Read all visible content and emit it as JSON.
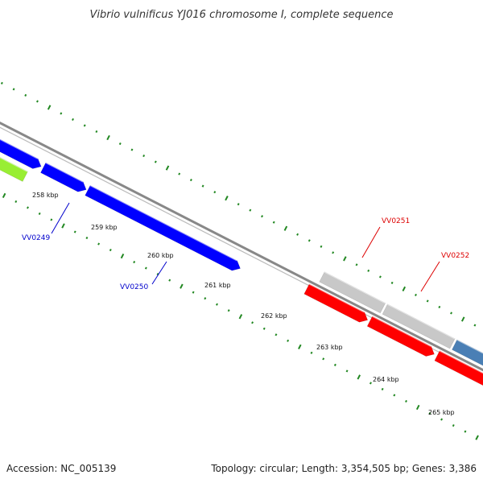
{
  "title": "Vibrio vulnificus YJ016 chromosome I, complete sequence",
  "footer": {
    "accession": "Accession: NC_005139",
    "summary": "Topology: circular; Length: 3,354,505 bp; Genes: 3,386"
  },
  "scale_labels": [
    "258 kbp",
    "259 kbp",
    "260 kbp",
    "261 kbp",
    "262 kbp",
    "263 kbp",
    "264 kbp",
    "265 kbp"
  ],
  "genes": [
    {
      "id": "lime-gene",
      "strand": "reverse",
      "color": "#99ee33",
      "label": ""
    },
    {
      "id": "gene-upper-left",
      "strand": "forward",
      "color": "#0000ff",
      "label": ""
    },
    {
      "id": "gene-vv0249",
      "strand": "reverse",
      "color": "#0000ff",
      "label": "VV0249",
      "label_color": "#0000cc"
    },
    {
      "id": "gene-vv0250",
      "strand": "reverse",
      "color": "#0000ff",
      "label": "VV0250",
      "label_color": "#0000cc"
    },
    {
      "id": "gene-vv0251",
      "strand": "forward",
      "color": "#c8c8c8",
      "label": "VV0251",
      "label_color": "#dd0000"
    },
    {
      "id": "gene-vv0252",
      "strand": "forward",
      "color": "#c8c8c8",
      "label": "VV0252",
      "label_color": "#dd0000"
    },
    {
      "id": "gene-steelblue",
      "strand": "forward",
      "color": "#4a7fb5",
      "label": ""
    },
    {
      "id": "gene-red-1",
      "strand": "forward",
      "color": "#ff0000",
      "label": ""
    },
    {
      "id": "gene-red-2",
      "strand": "forward",
      "color": "#ff0000",
      "label": ""
    },
    {
      "id": "gene-red-3",
      "strand": "forward",
      "color": "#ff0000",
      "label": ""
    }
  ],
  "colors": {
    "backbone": "#888888",
    "tick": "#228822",
    "forward_gene_label": "#dd0000",
    "reverse_gene_label": "#0000cc"
  }
}
